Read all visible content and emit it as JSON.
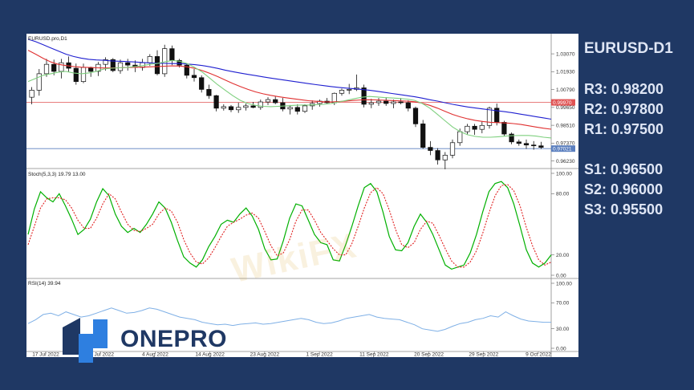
{
  "chart_data": {
    "type": "candlestick",
    "symbol_label": "EURUSD.pro,D1",
    "x_labels": [
      "17 Jul 2022",
      "26 Jul 2022",
      "4 Aug 2022",
      "14 Aug 2022",
      "23 Aug 2022",
      "1 Sep 2022",
      "11 Sep 2022",
      "20 Sep 2022",
      "29 Sep 2022",
      "9 Oct 2022"
    ],
    "price_axis": {
      "ylim": [
        0.9575,
        1.0415
      ],
      "ticks": [
        "1.03070",
        "1.01930",
        "1.00790",
        "0.99650",
        "0.98510",
        "0.97370",
        "0.96230"
      ]
    },
    "price_tags": [
      {
        "value": 0.9997,
        "label": "0.99970",
        "color": "#e05353"
      },
      {
        "value": 0.97021,
        "label": "0.97021",
        "color": "#5b7fbf"
      }
    ],
    "candles": {
      "columns": [
        "open",
        "high",
        "low",
        "close"
      ],
      "values": [
        [
          1.003,
          1.0095,
          0.9985,
          1.0075
        ],
        [
          1.0075,
          1.021,
          1.004,
          1.018
        ],
        [
          1.018,
          1.0275,
          1.016,
          1.024
        ],
        [
          1.024,
          1.027,
          1.017,
          1.0195
        ],
        [
          1.0195,
          1.0275,
          1.015,
          1.025
        ],
        [
          1.025,
          1.029,
          1.019,
          1.0215
        ],
        [
          1.0215,
          1.0245,
          1.011,
          1.013
        ],
        [
          1.013,
          1.0245,
          1.012,
          1.022
        ],
        [
          1.022,
          1.0225,
          1.016,
          1.0195
        ],
        [
          1.0195,
          1.0255,
          1.0165,
          1.024
        ],
        [
          1.024,
          1.0285,
          1.02,
          1.027
        ],
        [
          1.027,
          1.028,
          1.019,
          1.02
        ],
        [
          1.02,
          1.027,
          1.018,
          1.025
        ],
        [
          1.025,
          1.0275,
          1.02,
          1.0235
        ],
        [
          1.0235,
          1.0265,
          1.019,
          1.022
        ],
        [
          1.022,
          1.0275,
          1.02,
          1.025
        ],
        [
          1.025,
          1.0305,
          1.023,
          1.029
        ],
        [
          1.029,
          1.033,
          1.017,
          1.018
        ],
        [
          1.018,
          1.0365,
          1.016,
          1.034
        ],
        [
          1.034,
          1.036,
          1.0235,
          1.0265
        ],
        [
          1.0265,
          1.0275,
          1.022,
          1.0235
        ],
        [
          1.0235,
          1.0245,
          1.015,
          1.017
        ],
        [
          1.017,
          1.021,
          1.013,
          1.0155
        ],
        [
          1.0155,
          1.017,
          1.006,
          1.008
        ],
        [
          1.008,
          1.011,
          1.002,
          1.004
        ],
        [
          1.004,
          1.0045,
          0.994,
          0.996
        ],
        [
          0.996,
          0.9985,
          0.9945,
          0.997
        ],
        [
          0.997,
          0.998,
          0.9935,
          0.995
        ],
        [
          0.995,
          0.9995,
          0.993,
          0.9965
        ],
        [
          0.9965,
          0.999,
          0.9945,
          0.9975
        ],
        [
          0.9975,
          1.0,
          0.996,
          0.9965
        ],
        [
          0.9965,
          1.0015,
          0.995,
          1.0
        ],
        [
          1.0,
          1.003,
          0.998,
          1.0015
        ],
        [
          1.0015,
          1.0035,
          0.9985,
          0.9995
        ],
        [
          0.9995,
          1.0025,
          0.994,
          0.9955
        ],
        [
          0.9955,
          0.998,
          0.992,
          0.9965
        ],
        [
          0.9965,
          0.9985,
          0.992,
          0.994
        ],
        [
          0.994,
          0.9985,
          0.993,
          0.9975
        ],
        [
          0.9975,
          1.001,
          0.995,
          0.999
        ],
        [
          0.999,
          1.0015,
          0.997,
          1.0005
        ],
        [
          1.0005,
          1.0025,
          0.9985,
          0.9995
        ],
        [
          0.9995,
          1.006,
          0.998,
          1.0055
        ],
        [
          1.0055,
          1.0085,
          1.004,
          1.0075
        ],
        [
          1.0075,
          1.0115,
          1.005,
          1.008
        ],
        [
          1.008,
          1.0175,
          1.007,
          1.009
        ],
        [
          1.009,
          1.011,
          0.9965,
          0.9985
        ],
        [
          0.9985,
          1.002,
          0.996,
          0.9995
        ],
        [
          0.9995,
          1.0025,
          0.9975,
          1.0005
        ],
        [
          1.0005,
          1.003,
          0.9975,
          0.999
        ],
        [
          0.999,
          1.0015,
          0.996,
          1.0
        ],
        [
          1.0,
          1.0025,
          0.9985,
          0.9995
        ],
        [
          0.9995,
          1.001,
          0.994,
          0.996
        ],
        [
          0.996,
          0.997,
          0.984,
          0.986
        ],
        [
          0.986,
          0.9885,
          0.97,
          0.971
        ],
        [
          0.971,
          0.975,
          0.966,
          0.969
        ],
        [
          0.969,
          0.9705,
          0.96,
          0.963
        ],
        [
          0.963,
          0.968,
          0.957,
          0.966
        ],
        [
          0.966,
          0.976,
          0.964,
          0.974
        ],
        [
          0.974,
          0.983,
          0.972,
          0.981
        ],
        [
          0.981,
          0.986,
          0.979,
          0.9845
        ],
        [
          0.9845,
          0.986,
          0.979,
          0.9825
        ],
        [
          0.9825,
          0.9875,
          0.98,
          0.985
        ],
        [
          0.985,
          0.997,
          0.983,
          0.996
        ],
        [
          0.996,
          0.999,
          0.985,
          0.987
        ],
        [
          0.987,
          0.988,
          0.978,
          0.9795
        ],
        [
          0.9795,
          0.9805,
          0.973,
          0.9745
        ],
        [
          0.9745,
          0.976,
          0.972,
          0.9735
        ],
        [
          0.9735,
          0.976,
          0.97,
          0.9725
        ],
        [
          0.9725,
          0.975,
          0.9695,
          0.972
        ],
        [
          0.972,
          0.9745,
          0.97,
          0.971
        ]
      ]
    },
    "moving_averages": [
      {
        "color": "#1f1fd0",
        "values": [
          1.04,
          1.0385,
          1.0365,
          1.0345,
          1.0325,
          1.0305,
          1.029,
          1.028,
          1.0272,
          1.0268,
          1.0266,
          1.0262,
          1.026,
          1.0258,
          1.0255,
          1.0252,
          1.0249,
          1.0247,
          1.0246,
          1.0245,
          1.0245,
          1.0242,
          1.0238,
          1.0232,
          1.0224,
          1.0214,
          1.0203,
          1.0193,
          1.0184,
          1.0176,
          1.0168,
          1.016,
          1.0152,
          1.0145,
          1.0138,
          1.0131,
          1.0124,
          1.0117,
          1.011,
          1.0104,
          1.0098,
          1.0093,
          1.0088,
          1.0084,
          1.008,
          1.0075,
          1.0068,
          1.0061,
          1.0054,
          1.0047,
          1.004,
          1.0033,
          1.0024,
          1.0014,
          1.0005,
          0.9995,
          0.9985,
          0.9976,
          0.9968,
          0.9961,
          0.9955,
          0.9949,
          0.9943,
          0.9937,
          0.993,
          0.9922,
          0.9914,
          0.9906,
          0.9898,
          0.989
        ]
      },
      {
        "color": "#e03030",
        "values": [
          1.033,
          1.0305,
          1.0278,
          1.0255,
          1.024,
          1.0232,
          1.0226,
          1.0222,
          1.022,
          1.0218,
          1.0217,
          1.0217,
          1.0218,
          1.022,
          1.0221,
          1.0222,
          1.0224,
          1.0226,
          1.0228,
          1.023,
          1.0229,
          1.0224,
          1.0214,
          1.02,
          1.0182,
          1.0162,
          1.014,
          1.0118,
          1.0098,
          1.008,
          1.0064,
          1.0052,
          1.0042,
          1.0034,
          1.0027,
          1.002,
          1.0014,
          1.0008,
          1.0004,
          1.0001,
          1.0,
          1.0002,
          1.0006,
          1.001,
          1.0013,
          1.0014,
          1.0013,
          1.0011,
          1.0009,
          1.0007,
          1.0005,
          1.0001,
          0.9992,
          0.9978,
          0.996,
          0.994,
          0.992,
          0.9905,
          0.9892,
          0.9882,
          0.9875,
          0.987,
          0.9868,
          0.9866,
          0.9862,
          0.9856,
          0.9848,
          0.984,
          0.9832,
          0.9826
        ]
      },
      {
        "color": "#7fd07f",
        "values": [
          1.013,
          1.015,
          1.017,
          1.018,
          1.019,
          1.0195,
          1.0185,
          1.018,
          1.0185,
          1.0195,
          1.021,
          1.0215,
          1.0218,
          1.022,
          1.0225,
          1.023,
          1.024,
          1.0245,
          1.0255,
          1.0265,
          1.026,
          1.0245,
          1.022,
          1.019,
          1.015,
          1.011,
          1.0075,
          1.004,
          1.001,
          0.999,
          0.9978,
          0.9972,
          0.997,
          0.9972,
          0.9975,
          0.9978,
          0.998,
          0.998,
          0.9982,
          0.9985,
          0.999,
          1.0,
          1.001,
          1.002,
          1.003,
          1.0035,
          1.0032,
          1.0028,
          1.0025,
          1.0022,
          1.0018,
          1.001,
          0.999,
          0.996,
          0.992,
          0.988,
          0.984,
          0.981,
          0.979,
          0.978,
          0.9775,
          0.9775,
          0.9778,
          0.9782,
          0.9785,
          0.9786,
          0.9786,
          0.9782,
          0.9775,
          0.977
        ]
      }
    ],
    "stochastic": {
      "label": "Stoch(5,3,3) 19.79 13.00",
      "ylim": [
        0,
        100
      ],
      "ticks": [
        "100.00",
        "80.00",
        "20.00",
        "0.00"
      ],
      "k_color": "#00b000",
      "d_color": "#e02020",
      "k": [
        40,
        65,
        82,
        76,
        72,
        80,
        68,
        55,
        40,
        45,
        55,
        72,
        85,
        78,
        60,
        48,
        42,
        46,
        42,
        50,
        60,
        72,
        66,
        52,
        34,
        18,
        12,
        8,
        15,
        28,
        38,
        50,
        54,
        52,
        60,
        66,
        58,
        45,
        26,
        15,
        16,
        34,
        56,
        70,
        68,
        54,
        40,
        32,
        30,
        15,
        14,
        30,
        48,
        68,
        86,
        90,
        82,
        62,
        38,
        25,
        24,
        32,
        48,
        60,
        52,
        40,
        25,
        10,
        6,
        8,
        10,
        22,
        40,
        62,
        82,
        90,
        92,
        86,
        70,
        48,
        25,
        12,
        8,
        12,
        20
      ],
      "d": [
        30,
        48,
        66,
        75,
        76,
        76,
        74,
        66,
        54,
        46,
        46,
        56,
        70,
        80,
        75,
        62,
        50,
        44,
        43,
        46,
        50,
        60,
        66,
        63,
        52,
        35,
        22,
        13,
        11,
        17,
        27,
        38,
        48,
        52,
        55,
        59,
        61,
        56,
        43,
        29,
        19,
        22,
        35,
        53,
        64,
        64,
        54,
        42,
        34,
        26,
        20,
        20,
        31,
        48,
        66,
        81,
        86,
        80,
        64,
        45,
        30,
        27,
        32,
        45,
        53,
        51,
        39,
        26,
        14,
        8,
        8,
        13,
        24,
        41,
        61,
        78,
        88,
        89,
        83,
        68,
        47,
        29,
        15,
        10,
        13
      ]
    },
    "rsi": {
      "label": "RSI(14) 39.94",
      "ylim": [
        0,
        100
      ],
      "ticks": [
        "100.00",
        "70.00",
        "30.00",
        "0.00"
      ],
      "color": "#7fb0e6",
      "values": [
        38,
        44,
        52,
        54,
        50,
        56,
        52,
        48,
        50,
        54,
        58,
        62,
        58,
        54,
        55,
        58,
        62,
        60,
        56,
        52,
        48,
        46,
        44,
        40,
        38,
        36,
        37,
        35,
        37,
        38,
        39,
        37,
        38,
        40,
        42,
        44,
        46,
        44,
        40,
        38,
        39,
        42,
        46,
        48,
        50,
        52,
        48,
        46,
        45,
        44,
        40,
        36,
        30,
        28,
        26,
        29,
        34,
        38,
        40,
        44,
        46,
        50,
        48,
        56,
        50,
        45,
        42,
        41,
        40,
        40
      ]
    }
  },
  "levels": {
    "symbol": "EURUSD-D1",
    "resistance": [
      "R3: 0.98200",
      "R2: 0.97800",
      "R1: 0.97500"
    ],
    "support": [
      "S1: 0.96500",
      "S2: 0.96000",
      "S3: 0.95500"
    ]
  },
  "logo": {
    "text": "ONEPRO",
    "color": "#1f3864",
    "accent": "#2e7fe0"
  },
  "watermark": {
    "text": "WikiFX"
  }
}
